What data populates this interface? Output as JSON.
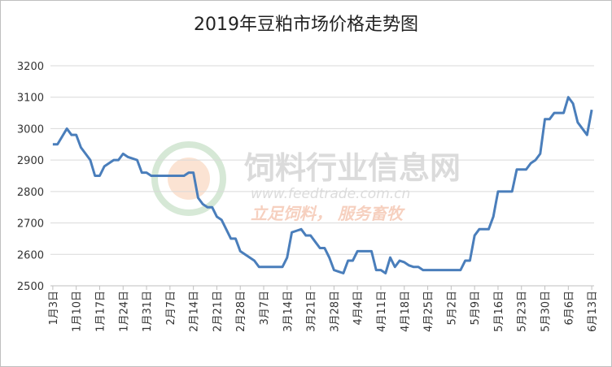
{
  "chart_data": {
    "type": "line",
    "title": "2019年豆粕市场价格走势图",
    "categories": [
      "1月3日",
      null,
      null,
      null,
      null,
      "1月10日",
      null,
      null,
      null,
      null,
      "1月17日",
      null,
      null,
      null,
      null,
      "1月24日",
      null,
      null,
      null,
      null,
      "1月31日",
      null,
      null,
      null,
      null,
      "2月7日",
      null,
      null,
      null,
      null,
      "2月14日",
      null,
      null,
      null,
      null,
      "2月21日",
      null,
      null,
      null,
      null,
      "2月28日",
      null,
      null,
      null,
      null,
      "3月7日",
      null,
      null,
      null,
      null,
      "3月14日",
      null,
      null,
      null,
      null,
      "3月21日",
      null,
      null,
      null,
      null,
      "3月28日",
      null,
      null,
      null,
      null,
      "4月4日",
      null,
      null,
      null,
      null,
      "4月11日",
      null,
      null,
      null,
      null,
      "4月18日",
      null,
      null,
      null,
      null,
      "4月25日",
      null,
      null,
      null,
      null,
      "5月2日",
      null,
      null,
      null,
      null,
      "5月9日",
      null,
      null,
      null,
      null,
      "5月16日",
      null,
      null,
      null,
      null,
      "5月23日",
      null,
      null,
      null,
      null,
      "5月30日",
      null,
      null,
      null,
      null,
      "6月6日",
      null,
      null,
      null,
      null,
      "6月13日"
    ],
    "values": [
      2950,
      2950,
      2975,
      3000,
      2980,
      2980,
      2940,
      2920,
      2900,
      2850,
      2850,
      2880,
      2890,
      2900,
      2900,
      2920,
      2910,
      2905,
      2900,
      2860,
      2860,
      2850,
      2850,
      2850,
      2850,
      2850,
      2850,
      2850,
      2850,
      2860,
      2860,
      2780,
      2760,
      2750,
      2750,
      2720,
      2710,
      2680,
      2650,
      2650,
      2610,
      2600,
      2590,
      2580,
      2560,
      2560,
      2560,
      2560,
      2560,
      2560,
      2590,
      2670,
      2675,
      2680,
      2660,
      2660,
      2640,
      2620,
      2620,
      2590,
      2550,
      2545,
      2540,
      2580,
      2580,
      2610,
      2610,
      2610,
      2610,
      2550,
      2550,
      2540,
      2590,
      2560,
      2580,
      2575,
      2565,
      2560,
      2560,
      2550,
      2550,
      2550,
      2550,
      2550,
      2550,
      2550,
      2550,
      2550,
      2580,
      2580,
      2660,
      2680,
      2680,
      2680,
      2720,
      2800,
      2800,
      2800,
      2800,
      2870,
      2870,
      2870,
      2890,
      2900,
      2920,
      3030,
      3030,
      3050,
      3050,
      3050,
      3100,
      3080,
      3020,
      3000,
      2980,
      3060
    ],
    "color": "#4a7ebb",
    "ylim": [
      2500,
      3200
    ],
    "yticks": [
      2500,
      2600,
      2700,
      2800,
      2900,
      3000,
      3100,
      3200
    ],
    "grid": true,
    "watermark": {
      "name": "饲料行业信息网",
      "url": "www.feedtrade.com.cn",
      "slogan": "立足饲料， 服务畜牧"
    }
  }
}
